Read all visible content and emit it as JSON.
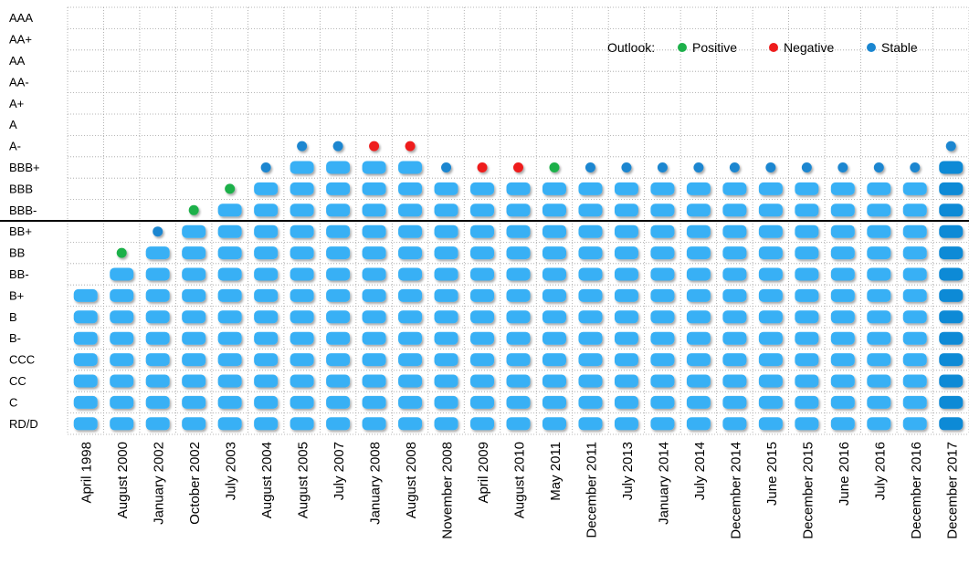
{
  "chart_data": {
    "type": "scatter",
    "description_of_marks": "stacked rounded bars of rating notches per date, with an outlook dot above each column",
    "y_categories": [
      "RD/D",
      "C",
      "CC",
      "CCC",
      "B-",
      "B",
      "B+",
      "BB-",
      "BB",
      "BB+",
      "BBB-",
      "BBB",
      "BBB+",
      "A-",
      "A",
      "A+",
      "AA-",
      "AA",
      "AA+",
      "AAA"
    ],
    "x_categories": [
      "April 1998",
      "August 2000",
      "January 2002",
      "October 2002",
      "July 2003",
      "August 2004",
      "August 2005",
      "July 2007",
      "January 2008",
      "August 2008",
      "November 2008",
      "April 2009",
      "August 2010",
      "May 2011",
      "December 2011",
      "July 2013",
      "January 2014",
      "July 2014",
      "December 2014",
      "June 2015",
      "December 2015",
      "June 2016",
      "July 2016",
      "December 2016",
      "December 2017"
    ],
    "ratings": [
      "B+",
      "BB-",
      "BB",
      "BB+",
      "BBB-",
      "BBB",
      "BBB+",
      "BBB+",
      "BBB+",
      "BBB+",
      "BBB",
      "BBB",
      "BBB",
      "BBB",
      "BBB",
      "BBB",
      "BBB",
      "BBB",
      "BBB",
      "BBB",
      "BBB",
      "BBB",
      "BBB",
      "BBB",
      "BBB+"
    ],
    "outlooks": [
      "",
      "Positive",
      "Stable",
      "Positive",
      "Positive",
      "Stable",
      "Stable",
      "Stable",
      "Negative",
      "Negative",
      "Stable",
      "Negative",
      "Negative",
      "Positive",
      "Stable",
      "Stable",
      "Stable",
      "Stable",
      "Stable",
      "Stable",
      "Stable",
      "Stable",
      "Stable",
      "Stable",
      "Stable"
    ],
    "investment_grade_threshold": "BBB-",
    "legend": {
      "title": "Outlook:",
      "placement": "top-right",
      "items": [
        {
          "name": "Positive",
          "color": "#1db04a"
        },
        {
          "name": "Negative",
          "color": "#ee1c1c"
        },
        {
          "name": "Stable",
          "color": "#1a86d0"
        }
      ]
    },
    "colors": {
      "bar": "#38b0f5",
      "bar_last": "#0f8ad6",
      "grid": "#a0a0a0",
      "threshold_line": "#000000"
    },
    "grid": true
  }
}
